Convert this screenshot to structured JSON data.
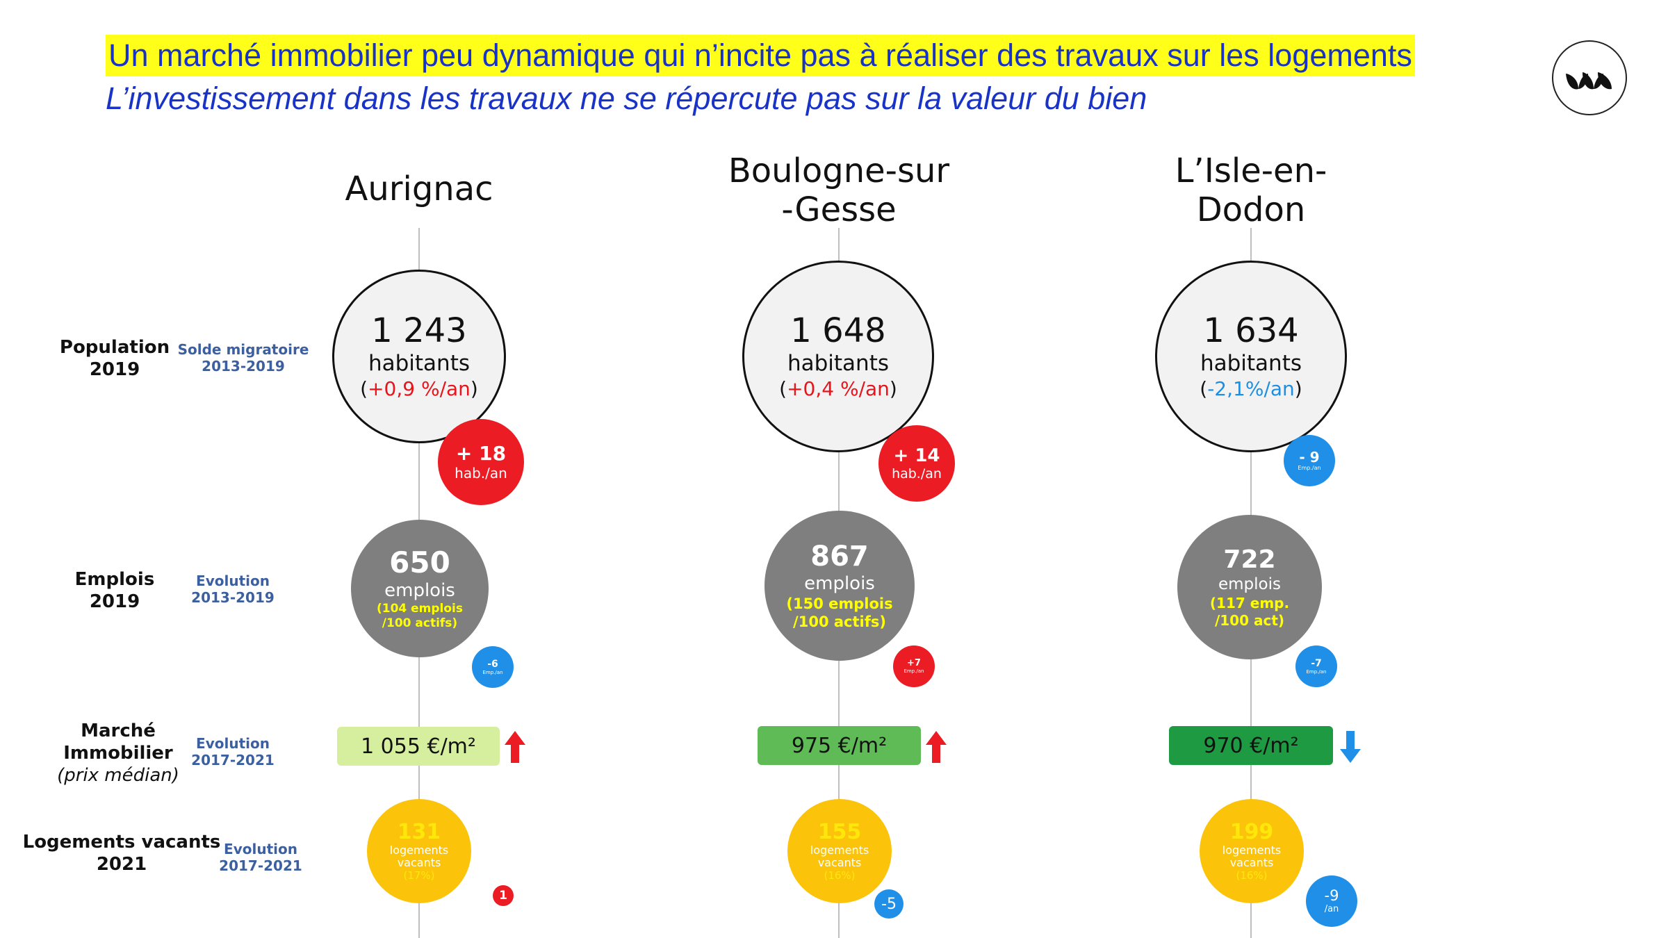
{
  "header": {
    "title": "Un marché immobilier peu dynamique qui n’incite pas à réaliser des travaux sur les logements",
    "subtitle": "L’investissement dans les travaux ne se répercute pas sur la valeur du bien"
  },
  "logo": {
    "icon": "leaf-logo-icon"
  },
  "rows": {
    "population": {
      "label_line1": "Population",
      "label_line2": "2019",
      "evo_line1": "Solde migratoire",
      "evo_line2": "2013-2019"
    },
    "emplois": {
      "label_line1": "Emplois",
      "label_line2": "2019",
      "evo_line1": "Evolution",
      "evo_line2": "2013-2019"
    },
    "marche": {
      "label_line1": "Marché",
      "label_line2": "Immobilier",
      "label_line3": "(prix médian)",
      "evo_line1": "Evolution",
      "evo_line2": "2017-2021"
    },
    "vacants": {
      "label_line1": "Logements vacants",
      "label_line2": "2021",
      "evo_line1": "Evolution",
      "evo_line2": "2017-2021"
    }
  },
  "towns": [
    {
      "name_line1": "Aurignac",
      "name_line2": "",
      "pop": {
        "value": "1 243",
        "unit": "habitants",
        "open": "(",
        "change": "+0,9 %/an",
        "close": ")",
        "badge_value": "+ 18",
        "badge_unit": "hab./an",
        "badge_color": "#ec1c24"
      },
      "emp": {
        "value": "650",
        "unit": "emplois",
        "sub1": "(104 emplois",
        "sub2": "/100 actifs)",
        "badge_value": "-6",
        "badge_unit": "Emp./an",
        "badge_color": "#1f8fe8"
      },
      "price": {
        "value": "1 055 €/m²",
        "color": "#d6ef9f",
        "trend": "up",
        "trend_color": "#ec1c24"
      },
      "vac": {
        "value": "131",
        "unit1": "logements",
        "unit2": "vacants",
        "pct": "(17%)",
        "badge_value": "1",
        "badge_color": "#ec1c24"
      }
    },
    {
      "name_line1": "Boulogne-sur",
      "name_line2": "-Gesse",
      "pop": {
        "value": "1 648",
        "unit": "habitants",
        "open": "(",
        "change": "+0,4 %/an",
        "close": ")",
        "badge_value": "+ 14",
        "badge_unit": "hab./an",
        "badge_color": "#ec1c24"
      },
      "emp": {
        "value": "867",
        "unit": "emplois",
        "sub1": "(150 emplois",
        "sub2": "/100 actifs)",
        "badge_value": "+7",
        "badge_unit": "Emp./an",
        "badge_color": "#ec1c24"
      },
      "price": {
        "value": "975 €/m²",
        "color": "#5ebb55",
        "trend": "up",
        "trend_color": "#ec1c24"
      },
      "vac": {
        "value": "155",
        "unit1": "logements",
        "unit2": "vacants",
        "pct": "(16%)",
        "badge_value": "-5",
        "badge_color": "#1f8fe8"
      }
    },
    {
      "name_line1": "L’Isle-en-",
      "name_line2": "Dodon",
      "pop": {
        "value": "1 634",
        "unit": "habitants",
        "open": "(",
        "change": "-2,1%/an",
        "close": ")",
        "badge_value": "- 9",
        "badge_unit": "Emp./an",
        "badge_color": "#1f8fe8"
      },
      "emp": {
        "value": "722",
        "unit": "emplois",
        "sub1": "(117 emp.",
        "sub2": "/100 act)",
        "badge_value": "-7",
        "badge_unit": "Emp./an",
        "badge_color": "#1f8fe8"
      },
      "price": {
        "value": "970 €/m²",
        "color": "#1e9a42",
        "trend": "down",
        "trend_color": "#1f8fe8"
      },
      "vac": {
        "value": "199",
        "unit1": "logements",
        "unit2": "vacants",
        "pct": "(16%)",
        "badge_value": "-9",
        "badge_unit": "/an",
        "badge_color": "#1f8fe8"
      }
    }
  ]
}
